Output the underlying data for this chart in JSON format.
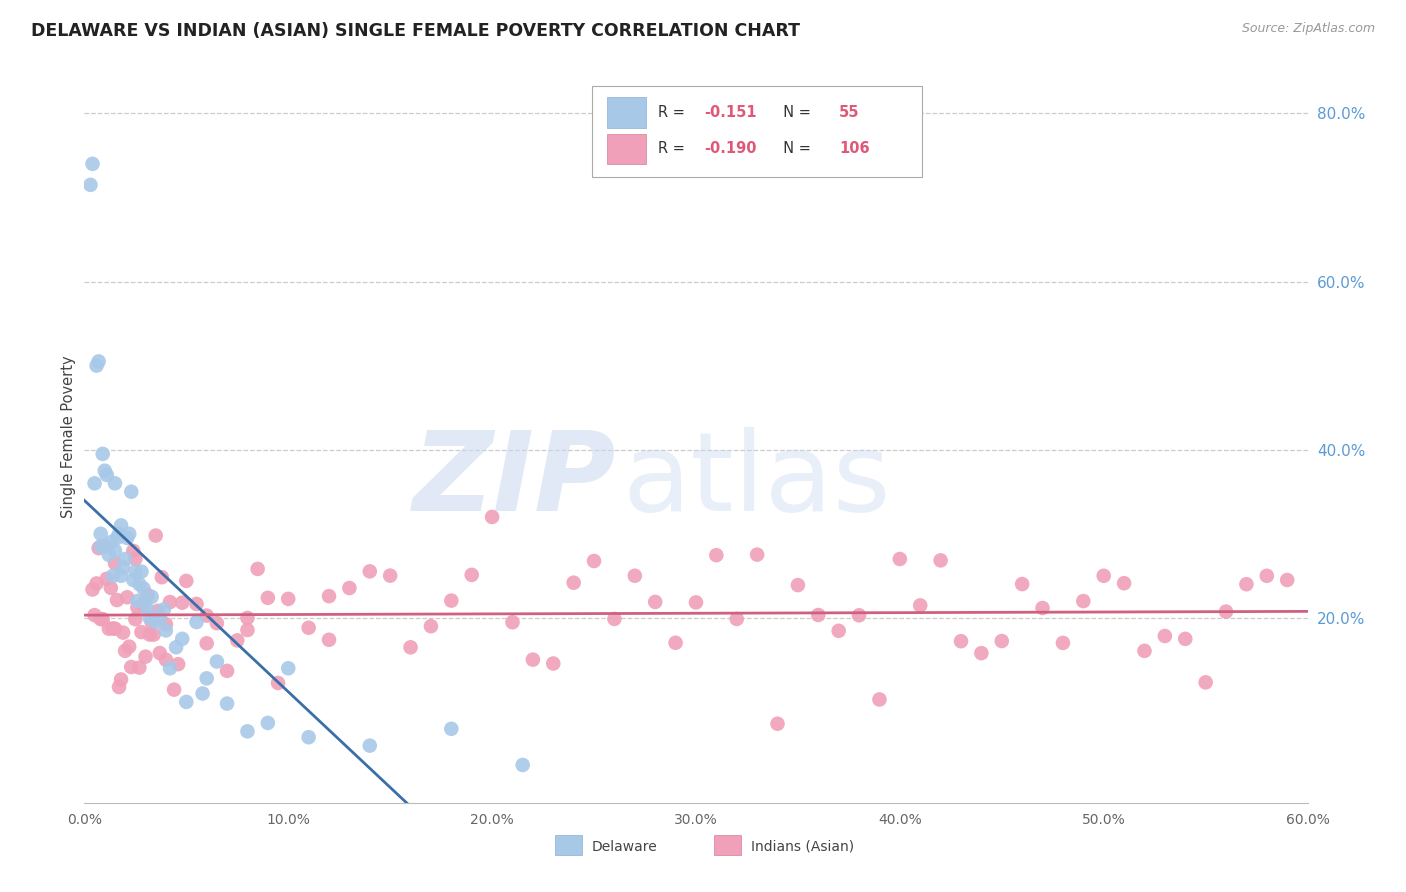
{
  "title": "DELAWARE VS INDIAN (ASIAN) SINGLE FEMALE POVERTY CORRELATION CHART",
  "source": "Source: ZipAtlas.com",
  "ylabel_label": "Single Female Poverty",
  "xlim": [
    0.0,
    0.6
  ],
  "ylim": [
    -0.02,
    0.85
  ],
  "xticks": [
    0.0,
    0.1,
    0.2,
    0.3,
    0.4,
    0.5,
    0.6
  ],
  "xtick_labels": [
    "0.0%",
    "10.0%",
    "20.0%",
    "30.0%",
    "40.0%",
    "50.0%",
    "60.0%"
  ],
  "yticks_right": [
    0.2,
    0.4,
    0.6,
    0.8
  ],
  "ytick_labels_right": [
    "20.0%",
    "40.0%",
    "60.0%",
    "80.0%"
  ],
  "delaware_R": "-0.151",
  "delaware_N": "55",
  "indian_R": "-0.190",
  "indian_N": "106",
  "background_color": "#ffffff",
  "grid_color": "#cccccc",
  "delaware_color": "#a8c8e8",
  "delaware_line_color": "#3a6fa8",
  "indian_color": "#f0a0b8",
  "indian_line_color": "#d06080",
  "right_axis_color": "#5b9bd5",
  "title_color": "#222222",
  "source_color": "#999999",
  "ylabel_color": "#444444"
}
